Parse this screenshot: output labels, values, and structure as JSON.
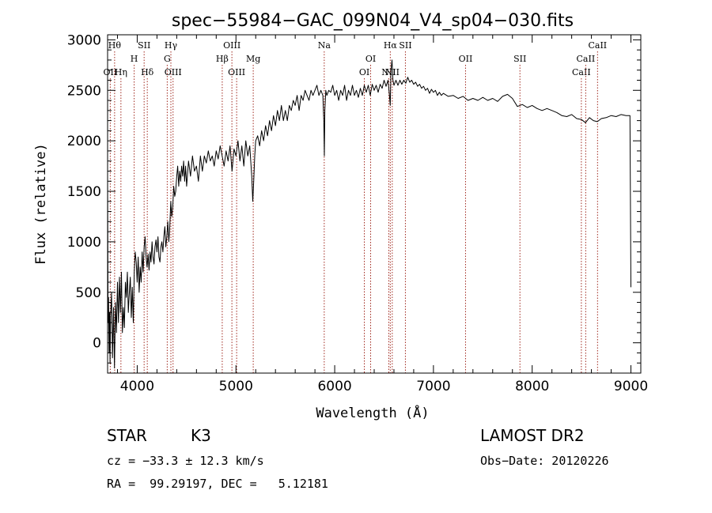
{
  "chart_data": {
    "type": "line",
    "title": "spec−55984−GAC_099N04_V4_sp04−030.fits",
    "xlabel": "Wavelength (Å)",
    "ylabel": "Flux (relative)",
    "xlim": [
      3700,
      9100
    ],
    "ylim": [
      -300,
      3050
    ],
    "xticks": [
      4000,
      5000,
      6000,
      7000,
      8000,
      9000
    ],
    "yticks": [
      0,
      500,
      1000,
      1500,
      2000,
      2500,
      3000
    ],
    "grid": false,
    "series": [
      {
        "color": "#000000",
        "points": [
          [
            3700,
            1650
          ],
          [
            3705,
            200
          ],
          [
            3710,
            450
          ],
          [
            3715,
            -100
          ],
          [
            3720,
            300
          ],
          [
            3725,
            -200
          ],
          [
            3730,
            250
          ],
          [
            3740,
            500
          ],
          [
            3750,
            -150
          ],
          [
            3760,
            350
          ],
          [
            3770,
            -250
          ],
          [
            3780,
            400
          ],
          [
            3790,
            100
          ],
          [
            3800,
            600
          ],
          [
            3810,
            200
          ],
          [
            3820,
            650
          ],
          [
            3830,
            300
          ],
          [
            3840,
            700
          ],
          [
            3850,
            100
          ],
          [
            3860,
            350
          ],
          [
            3870,
            150
          ],
          [
            3880,
            600
          ],
          [
            3890,
            450
          ],
          [
            3900,
            700
          ],
          [
            3910,
            300
          ],
          [
            3920,
            500
          ],
          [
            3930,
            650
          ],
          [
            3940,
            250
          ],
          [
            3950,
            550
          ],
          [
            3960,
            200
          ],
          [
            3970,
            700
          ],
          [
            3980,
            900
          ],
          [
            3990,
            800
          ],
          [
            4000,
            600
          ],
          [
            4010,
            850
          ],
          [
            4020,
            500
          ],
          [
            4030,
            750
          ],
          [
            4040,
            600
          ],
          [
            4050,
            900
          ],
          [
            4060,
            700
          ],
          [
            4070,
            950
          ],
          [
            4080,
            1050
          ],
          [
            4090,
            850
          ],
          [
            4100,
            750
          ],
          [
            4110,
            880
          ],
          [
            4120,
            720
          ],
          [
            4130,
            900
          ],
          [
            4140,
            800
          ],
          [
            4150,
            1000
          ],
          [
            4160,
            850
          ],
          [
            4170,
            780
          ],
          [
            4180,
            950
          ],
          [
            4190,
            1020
          ],
          [
            4200,
            900
          ],
          [
            4210,
            1050
          ],
          [
            4220,
            850
          ],
          [
            4230,
            800
          ],
          [
            4240,
            950
          ],
          [
            4250,
            1000
          ],
          [
            4260,
            900
          ],
          [
            4270,
            1050
          ],
          [
            4280,
            1150
          ],
          [
            4290,
            950
          ],
          [
            4300,
            1050
          ],
          [
            4310,
            1200
          ],
          [
            4320,
            1000
          ],
          [
            4330,
            1150
          ],
          [
            4340,
            1400
          ],
          [
            4350,
            1250
          ],
          [
            4360,
            1350
          ],
          [
            4370,
            1550
          ],
          [
            4380,
            1450
          ],
          [
            4390,
            1500
          ],
          [
            4400,
            1650
          ],
          [
            4410,
            1750
          ],
          [
            4420,
            1550
          ],
          [
            4430,
            1700
          ],
          [
            4440,
            1600
          ],
          [
            4450,
            1750
          ],
          [
            4460,
            1650
          ],
          [
            4470,
            1800
          ],
          [
            4480,
            1600
          ],
          [
            4490,
            1750
          ],
          [
            4500,
            1550
          ],
          [
            4520,
            1800
          ],
          [
            4540,
            1650
          ],
          [
            4560,
            1850
          ],
          [
            4580,
            1700
          ],
          [
            4600,
            1750
          ],
          [
            4620,
            1600
          ],
          [
            4640,
            1850
          ],
          [
            4660,
            1700
          ],
          [
            4680,
            1850
          ],
          [
            4700,
            1780
          ],
          [
            4720,
            1900
          ],
          [
            4740,
            1800
          ],
          [
            4760,
            1850
          ],
          [
            4780,
            1750
          ],
          [
            4800,
            1900
          ],
          [
            4820,
            1820
          ],
          [
            4840,
            1950
          ],
          [
            4860,
            1850
          ],
          [
            4880,
            1750
          ],
          [
            4900,
            1900
          ],
          [
            4920,
            1800
          ],
          [
            4940,
            1950
          ],
          [
            4960,
            1700
          ],
          [
            4980,
            1920
          ],
          [
            5000,
            1850
          ],
          [
            5020,
            2000
          ],
          [
            5040,
            1800
          ],
          [
            5060,
            1950
          ],
          [
            5080,
            1750
          ],
          [
            5100,
            2000
          ],
          [
            5120,
            1850
          ],
          [
            5140,
            1950
          ],
          [
            5160,
            1650
          ],
          [
            5170,
            1400
          ],
          [
            5180,
            1600
          ],
          [
            5190,
            1850
          ],
          [
            5200,
            2000
          ],
          [
            5220,
            2050
          ],
          [
            5240,
            1950
          ],
          [
            5260,
            2100
          ],
          [
            5280,
            2000
          ],
          [
            5300,
            2150
          ],
          [
            5320,
            2050
          ],
          [
            5340,
            2200
          ],
          [
            5360,
            2100
          ],
          [
            5380,
            2250
          ],
          [
            5400,
            2150
          ],
          [
            5420,
            2300
          ],
          [
            5440,
            2200
          ],
          [
            5460,
            2350
          ],
          [
            5480,
            2200
          ],
          [
            5500,
            2300
          ],
          [
            5520,
            2200
          ],
          [
            5540,
            2350
          ],
          [
            5560,
            2300
          ],
          [
            5580,
            2400
          ],
          [
            5600,
            2350
          ],
          [
            5620,
            2450
          ],
          [
            5640,
            2300
          ],
          [
            5660,
            2450
          ],
          [
            5680,
            2400
          ],
          [
            5700,
            2500
          ],
          [
            5720,
            2450
          ],
          [
            5740,
            2400
          ],
          [
            5760,
            2500
          ],
          [
            5780,
            2450
          ],
          [
            5800,
            2500
          ],
          [
            5820,
            2550
          ],
          [
            5840,
            2450
          ],
          [
            5860,
            2500
          ],
          [
            5880,
            2450
          ],
          [
            5890,
            2200
          ],
          [
            5895,
            1850
          ],
          [
            5900,
            2300
          ],
          [
            5910,
            2500
          ],
          [
            5920,
            2450
          ],
          [
            5940,
            2500
          ],
          [
            5960,
            2480
          ],
          [
            5980,
            2550
          ],
          [
            6000,
            2450
          ],
          [
            6020,
            2500
          ],
          [
            6040,
            2400
          ],
          [
            6060,
            2500
          ],
          [
            6080,
            2450
          ],
          [
            6100,
            2550
          ],
          [
            6120,
            2400
          ],
          [
            6140,
            2500
          ],
          [
            6160,
            2450
          ],
          [
            6180,
            2550
          ],
          [
            6200,
            2450
          ],
          [
            6220,
            2500
          ],
          [
            6240,
            2430
          ],
          [
            6260,
            2520
          ],
          [
            6280,
            2450
          ],
          [
            6300,
            2550
          ],
          [
            6320,
            2480
          ],
          [
            6340,
            2550
          ],
          [
            6360,
            2450
          ],
          [
            6380,
            2560
          ],
          [
            6400,
            2500
          ],
          [
            6420,
            2550
          ],
          [
            6440,
            2480
          ],
          [
            6460,
            2560
          ],
          [
            6480,
            2520
          ],
          [
            6500,
            2600
          ],
          [
            6520,
            2540
          ],
          [
            6540,
            2600
          ],
          [
            6555,
            2450
          ],
          [
            6563,
            2350
          ],
          [
            6570,
            2700
          ],
          [
            6580,
            2800
          ],
          [
            6590,
            2600
          ],
          [
            6600,
            2550
          ],
          [
            6620,
            2600
          ],
          [
            6640,
            2550
          ],
          [
            6660,
            2600
          ],
          [
            6680,
            2560
          ],
          [
            6700,
            2600
          ],
          [
            6720,
            2570
          ],
          [
            6740,
            2630
          ],
          [
            6760,
            2580
          ],
          [
            6780,
            2600
          ],
          [
            6800,
            2560
          ],
          [
            6820,
            2580
          ],
          [
            6840,
            2540
          ],
          [
            6860,
            2560
          ],
          [
            6880,
            2520
          ],
          [
            6900,
            2540
          ],
          [
            6920,
            2500
          ],
          [
            6940,
            2520
          ],
          [
            6960,
            2470
          ],
          [
            6980,
            2510
          ],
          [
            7000,
            2480
          ],
          [
            7020,
            2500
          ],
          [
            7040,
            2450
          ],
          [
            7060,
            2480
          ],
          [
            7080,
            2450
          ],
          [
            7100,
            2470
          ],
          [
            7150,
            2440
          ],
          [
            7200,
            2450
          ],
          [
            7250,
            2420
          ],
          [
            7300,
            2440
          ],
          [
            7350,
            2400
          ],
          [
            7400,
            2420
          ],
          [
            7450,
            2400
          ],
          [
            7500,
            2430
          ],
          [
            7550,
            2400
          ],
          [
            7600,
            2420
          ],
          [
            7650,
            2390
          ],
          [
            7700,
            2440
          ],
          [
            7750,
            2460
          ],
          [
            7800,
            2420
          ],
          [
            7850,
            2340
          ],
          [
            7900,
            2360
          ],
          [
            7950,
            2330
          ],
          [
            8000,
            2350
          ],
          [
            8050,
            2320
          ],
          [
            8100,
            2300
          ],
          [
            8150,
            2320
          ],
          [
            8200,
            2300
          ],
          [
            8250,
            2280
          ],
          [
            8300,
            2250
          ],
          [
            8350,
            2240
          ],
          [
            8400,
            2260
          ],
          [
            8450,
            2220
          ],
          [
            8500,
            2210
          ],
          [
            8540,
            2180
          ],
          [
            8580,
            2230
          ],
          [
            8620,
            2200
          ],
          [
            8660,
            2190
          ],
          [
            8700,
            2220
          ],
          [
            8750,
            2230
          ],
          [
            8800,
            2250
          ],
          [
            8850,
            2240
          ],
          [
            8900,
            2260
          ],
          [
            8950,
            2250
          ],
          [
            8990,
            2250
          ],
          [
            9000,
            550
          ]
        ]
      }
    ],
    "lines": [
      {
        "wavelength": 3727,
        "label": "OII",
        "level": 3
      },
      {
        "wavelength": 3771,
        "label": "Hθ",
        "level": 1
      },
      {
        "wavelength": 3835,
        "label": "Hη",
        "level": 3
      },
      {
        "wavelength": 3969,
        "label": "H",
        "level": 2
      },
      {
        "wavelength": 4070,
        "label": "SII",
        "level": 1
      },
      {
        "wavelength": 4102,
        "label": "Hδ",
        "level": 3
      },
      {
        "wavelength": 4304,
        "label": "G",
        "level": 2
      },
      {
        "wavelength": 4341,
        "label": "Hγ",
        "level": 1
      },
      {
        "wavelength": 4363,
        "label": "OIII",
        "level": 3
      },
      {
        "wavelength": 4861,
        "label": "Hβ",
        "level": 2
      },
      {
        "wavelength": 4959,
        "label": "OIII",
        "level": 1
      },
      {
        "wavelength": 5007,
        "label": "OIII",
        "level": 3
      },
      {
        "wavelength": 5175,
        "label": "Mg",
        "level": 2
      },
      {
        "wavelength": 5894,
        "label": "Na",
        "level": 1
      },
      {
        "wavelength": 6300,
        "label": "OI",
        "level": 3
      },
      {
        "wavelength": 6364,
        "label": "OI",
        "level": 2
      },
      {
        "wavelength": 6548,
        "label": "NII",
        "level": 3
      },
      {
        "wavelength": 6563,
        "label": "Hα",
        "level": 1
      },
      {
        "wavelength": 6583,
        "label": "NII",
        "level": 3
      },
      {
        "wavelength": 6716,
        "label": "SII",
        "level": 1
      },
      {
        "wavelength": 7325,
        "label": "OII",
        "level": 2
      },
      {
        "wavelength": 7876,
        "label": "SII",
        "level": 2
      },
      {
        "wavelength": 8498,
        "label": "CaII",
        "level": 3
      },
      {
        "wavelength": 8542,
        "label": "CaII",
        "level": 2
      },
      {
        "wavelength": 8662,
        "label": "CaII",
        "level": 1
      }
    ]
  },
  "info": {
    "object_class": "STAR",
    "subclass": "K3",
    "survey": "LAMOST DR2",
    "cz_line": "cz = −33.3 ± 12.3 km/s",
    "obs_date_line": "Obs−Date: 20120226",
    "radec_line": "RA =  99.29197, DEC =   5.12181"
  },
  "colors": {
    "spectrum": "#000000",
    "line_markers": "#a0281e",
    "axes": "#000000",
    "background": "#ffffff"
  }
}
